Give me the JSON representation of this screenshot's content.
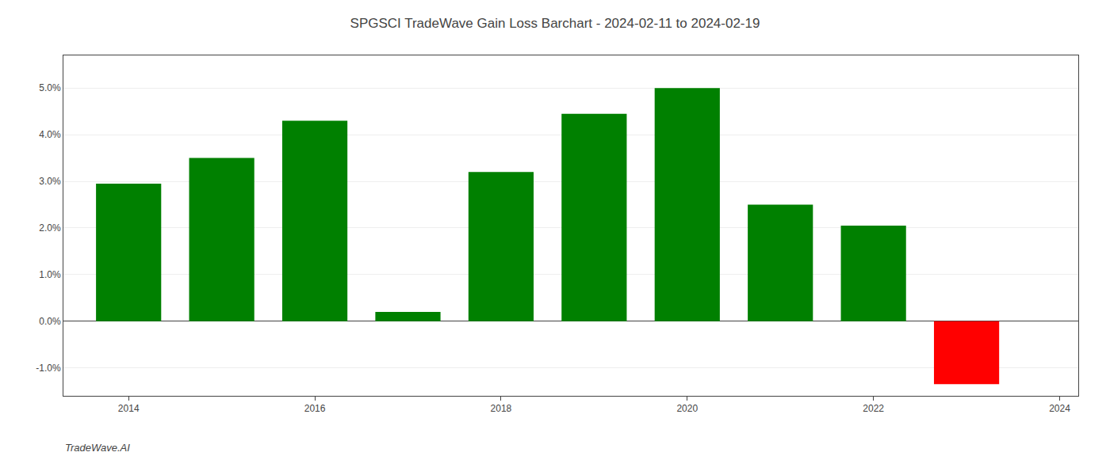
{
  "chart_data": {
    "type": "bar",
    "title": "SPGSCI TradeWave Gain Loss Barchart - 2024-02-11 to 2024-02-19",
    "annotations": [
      "TradeWave.AI"
    ],
    "x": [
      2014,
      2015,
      2016,
      2017,
      2018,
      2019,
      2020,
      2021,
      2022,
      2023
    ],
    "values": [
      0.0295,
      0.035,
      0.043,
      0.002,
      0.032,
      0.0445,
      0.05,
      0.025,
      0.0205,
      -0.0135
    ],
    "colors": [
      "#008000",
      "#008000",
      "#008000",
      "#008000",
      "#008000",
      "#008000",
      "#008000",
      "#008000",
      "#008000",
      "#ff0000"
    ],
    "xlim": [
      2013.3,
      2024.2
    ],
    "xticks": [
      2014,
      2016,
      2018,
      2020,
      2022,
      2024
    ],
    "ylim": [
      -0.016,
      0.057
    ],
    "yticks": [
      {
        "value": -0.01,
        "label": "-1.0%"
      },
      {
        "value": 0.0,
        "label": "0.0%"
      },
      {
        "value": 0.01,
        "label": "1.0%"
      },
      {
        "value": 0.02,
        "label": "2.0%"
      },
      {
        "value": 0.03,
        "label": "3.0%"
      },
      {
        "value": 0.04,
        "label": "4.0%"
      },
      {
        "value": 0.05,
        "label": "5.0%"
      }
    ],
    "grid": "y"
  }
}
